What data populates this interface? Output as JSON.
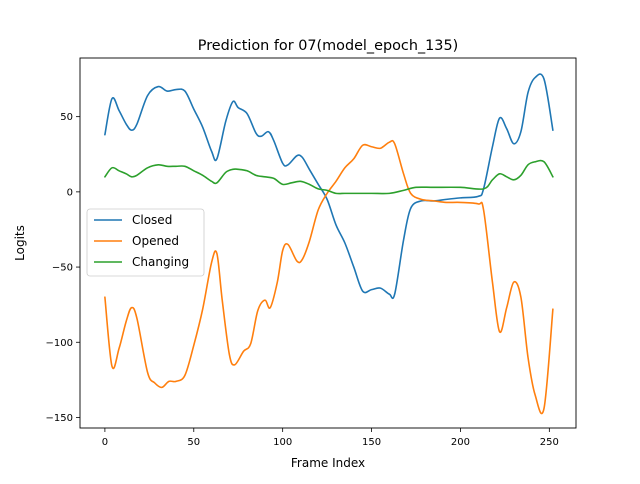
{
  "chart_data": {
    "type": "line",
    "title": "Prediction for 07(model_epoch_135)",
    "xlabel": "Frame Index",
    "ylabel": "Logits",
    "xlim": [
      -14,
      265
    ],
    "ylim": [
      -157,
      89
    ],
    "xticks": [
      0,
      50,
      100,
      150,
      200,
      250
    ],
    "yticks": [
      -150,
      -100,
      -50,
      0,
      50
    ],
    "xtick_labels": [
      "0",
      "50",
      "100",
      "150",
      "200",
      "250"
    ],
    "ytick_labels": [
      "−150",
      "−100",
      "−50",
      "0",
      "50"
    ],
    "grid": false,
    "legend_position": "center-left",
    "series": [
      {
        "name": "Closed",
        "color": "#1f77b4",
        "x": [
          0,
          4,
          8,
          12,
          15,
          18,
          24,
          30,
          35,
          40,
          45,
          50,
          55,
          60,
          63,
          68,
          72,
          75,
          80,
          85,
          88,
          92,
          95,
          100,
          103,
          108,
          111,
          115,
          120,
          125,
          130,
          135,
          140,
          145,
          150,
          155,
          160,
          163,
          168,
          172,
          178,
          185,
          192,
          200,
          210,
          213,
          218,
          222,
          226,
          230,
          234,
          238,
          242,
          247,
          252
        ],
        "values": [
          38,
          62,
          54,
          45,
          41,
          45,
          64,
          70,
          67,
          68,
          67,
          55,
          43,
          27,
          22,
          47,
          60,
          56,
          52,
          39,
          37,
          40,
          34,
          19,
          18,
          24,
          23,
          15,
          5,
          -5,
          -22,
          -34,
          -50,
          -66,
          -65,
          -64,
          -68,
          -68,
          -32,
          -11,
          -6,
          -6,
          -5,
          -4,
          -3,
          2,
          30,
          49,
          42,
          32,
          40,
          66,
          76,
          75,
          41
        ]
      },
      {
        "name": "Opened",
        "color": "#ff7f0e",
        "x": [
          0,
          4,
          8,
          12,
          15,
          18,
          24,
          28,
          32,
          36,
          40,
          45,
          50,
          55,
          60,
          63,
          66,
          70,
          73,
          78,
          82,
          86,
          90,
          93,
          97,
          100,
          103,
          108,
          111,
          115,
          120,
          125,
          130,
          135,
          140,
          145,
          150,
          155,
          160,
          163,
          168,
          172,
          178,
          185,
          192,
          200,
          210,
          213,
          218,
          222,
          226,
          230,
          234,
          238,
          242,
          247,
          252
        ],
        "values": [
          -70,
          -116,
          -104,
          -86,
          -77,
          -84,
          -120,
          -127,
          -130,
          -126,
          -126,
          -122,
          -102,
          -78,
          -47,
          -41,
          -72,
          -108,
          -115,
          -106,
          -101,
          -79,
          -72,
          -77,
          -60,
          -39,
          -35,
          -46,
          -45,
          -33,
          -12,
          -1,
          7,
          16,
          22,
          31,
          30,
          29,
          33,
          32,
          12,
          -1,
          -5,
          -6,
          -7,
          -7,
          -8,
          -12,
          -60,
          -93,
          -77,
          -60,
          -70,
          -110,
          -135,
          -144,
          -78
        ]
      },
      {
        "name": "Changing",
        "color": "#2ca02c",
        "x": [
          0,
          4,
          8,
          12,
          15,
          18,
          24,
          30,
          35,
          40,
          45,
          50,
          55,
          60,
          63,
          68,
          72,
          75,
          80,
          85,
          90,
          95,
          100,
          105,
          110,
          115,
          120,
          125,
          130,
          135,
          140,
          150,
          160,
          168,
          175,
          185,
          200,
          213,
          218,
          222,
          226,
          230,
          234,
          238,
          242,
          247,
          252
        ],
        "values": [
          10,
          16,
          14,
          12,
          10,
          11,
          16,
          18,
          17,
          17,
          17,
          14,
          11,
          7,
          6,
          13,
          15,
          15,
          14,
          11,
          10,
          9,
          5,
          6,
          7,
          5,
          2,
          1,
          -1,
          -1,
          -1,
          -1,
          -1,
          1,
          3,
          3,
          3,
          2,
          8,
          12,
          10,
          8,
          11,
          18,
          20,
          20,
          10
        ]
      }
    ]
  }
}
